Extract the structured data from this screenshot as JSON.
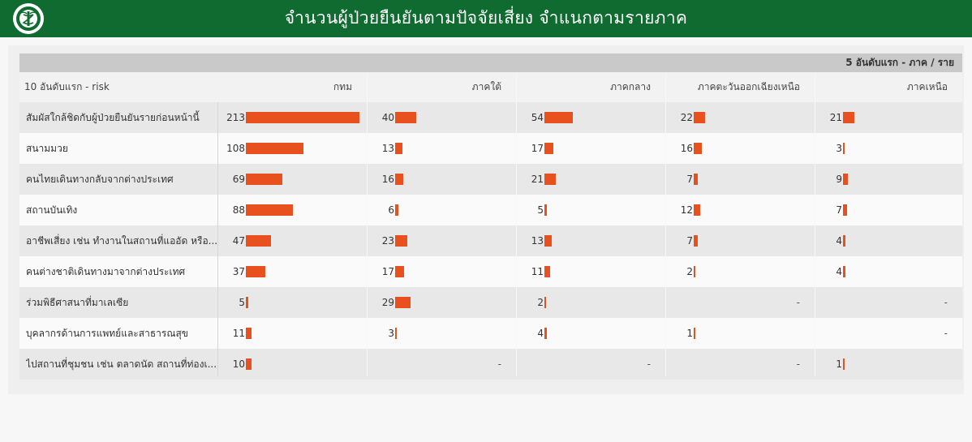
{
  "header": {
    "title": "จำนวนผู้ป่วยยืนยันตามปัจจัยเสี่ยง จำแนกตามรายภาค",
    "logo_icon": "ministry-of-public-health-emblem"
  },
  "top_label": "5 อันดับแรก - ภาค / ราย",
  "colors": {
    "bar": "#e8501e",
    "header_bg": "#0f6b2f"
  },
  "chart_data": {
    "type": "table",
    "row_header": "10 อันดับแรก - risk",
    "columns": [
      "กทม",
      "ภาคใต้",
      "ภาคกลาง",
      "ภาคตะวันออกเฉียงเหนือ",
      "ภาคเหนือ"
    ],
    "rows": [
      {
        "label": "สัมผัสใกล้ชิดกับผู้ป่วยยืนยันรายก่อนหน้านี้",
        "values": [
          213,
          40,
          54,
          22,
          21
        ]
      },
      {
        "label": "สนามมวย",
        "values": [
          108,
          13,
          17,
          16,
          3
        ]
      },
      {
        "label": "คนไทยเดินทางกลับจากต่างประเทศ",
        "values": [
          69,
          16,
          21,
          7,
          9
        ]
      },
      {
        "label": "สถานบันเทิง",
        "values": [
          88,
          6,
          5,
          12,
          7
        ]
      },
      {
        "label": "อาชีพเสี่ยง เช่น ทำงานในสถานที่แออัด หรือ...",
        "values": [
          47,
          23,
          13,
          7,
          4
        ]
      },
      {
        "label": "คนต่างชาติเดินทางมาจากต่างประเทศ",
        "values": [
          37,
          17,
          11,
          2,
          4
        ]
      },
      {
        "label": "ร่วมพิธีศาสนาที่มาเลเซีย",
        "values": [
          5,
          29,
          2,
          null,
          null
        ]
      },
      {
        "label": "บุคลากรด้านการแพทย์และสาธารณสุข",
        "values": [
          11,
          3,
          4,
          1,
          null
        ]
      },
      {
        "label": "ไปสถานที่ชุมชน เช่น ตลาดนัด สถานที่ท่องเ...",
        "values": [
          10,
          null,
          null,
          null,
          1
        ]
      }
    ],
    "missing_symbol": "-"
  }
}
